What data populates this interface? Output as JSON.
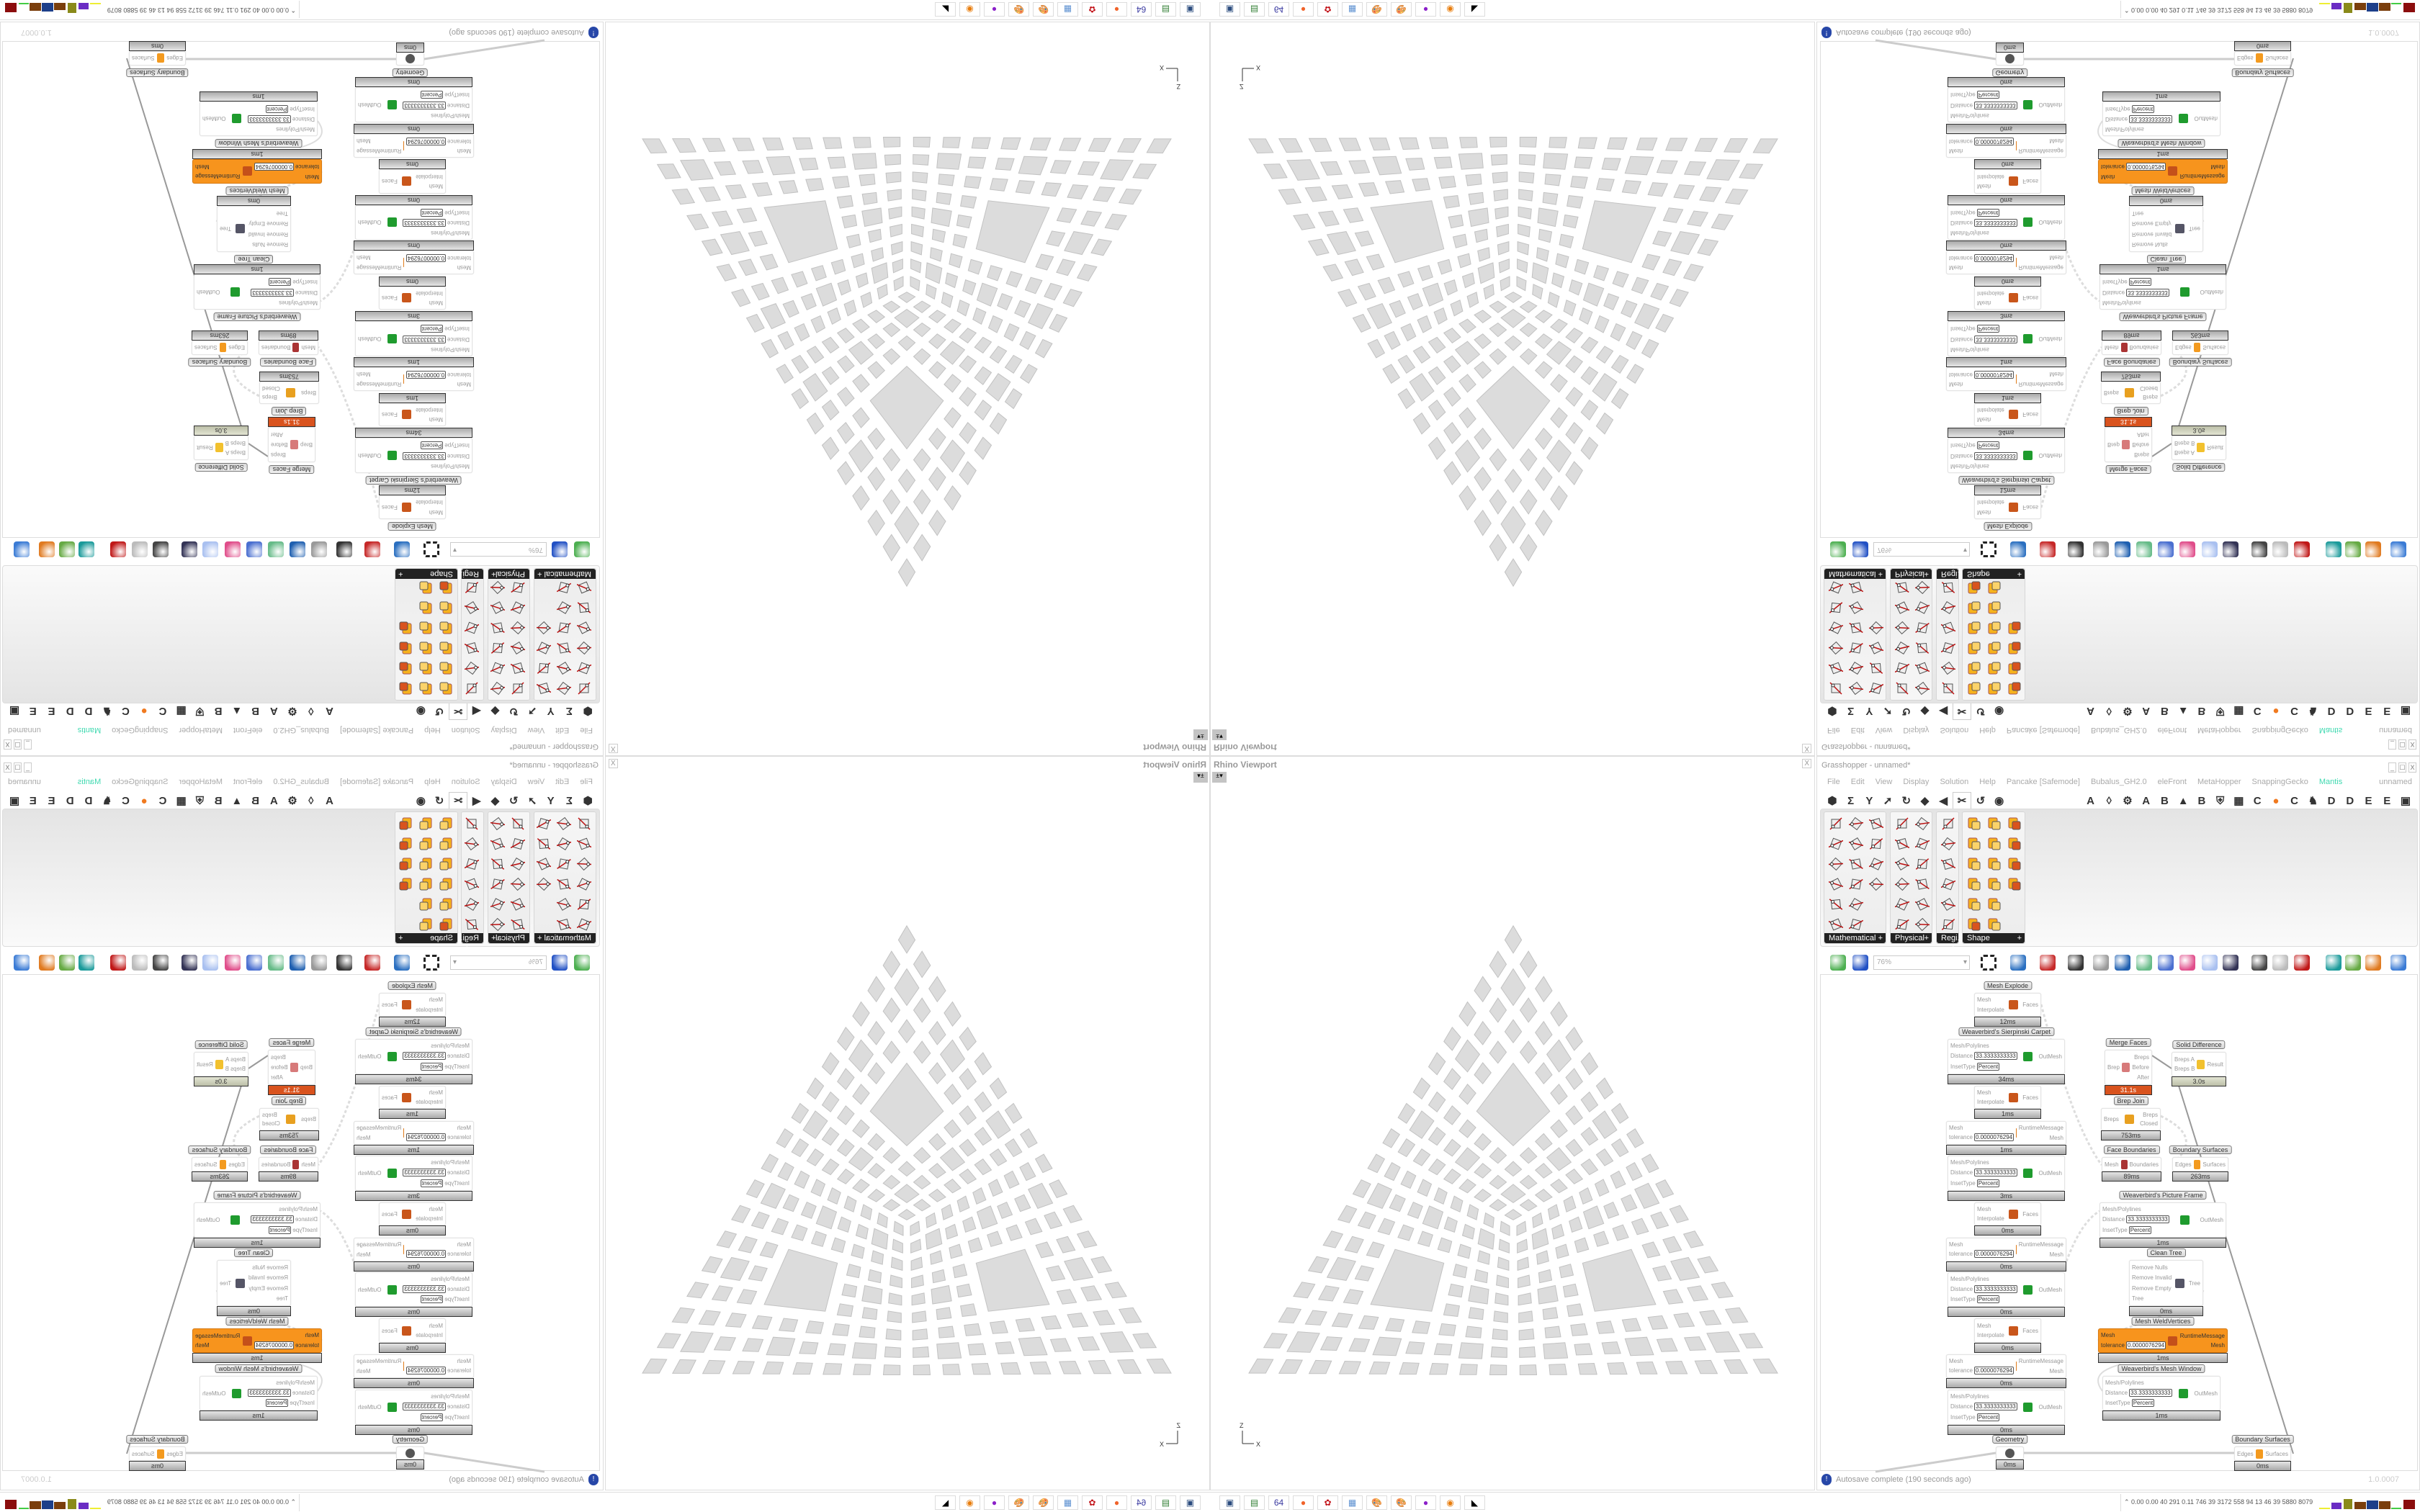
{
  "viewport": {
    "title": "Rhino Viewport",
    "close": "X",
    "dropdown": "±",
    "axis_z": "Z",
    "axis_x": "X"
  },
  "gh": {
    "title": "Grasshopper - unnamed*",
    "window_buttons": [
      "_",
      "☐",
      "X"
    ],
    "menu": [
      "File",
      "Edit",
      "View",
      "Display",
      "Solution",
      "Help",
      "Pancake [Safemode]",
      "Bubalus_GH2.0",
      "eleFront",
      "MetaHopper",
      "SnappingGecko",
      "Mantis"
    ],
    "active_menu_color": "#3fd9b0",
    "doc_name": "unnamed",
    "tabs": [
      {
        "glyph": "⬢",
        "name": "params-tab"
      },
      {
        "glyph": "Σ",
        "name": "maths-tab"
      },
      {
        "glyph": "Y",
        "name": "sets-tab"
      },
      {
        "glyph": "➚",
        "name": "vector-tab"
      },
      {
        "glyph": "↻",
        "name": "curve-tab"
      },
      {
        "glyph": "◆",
        "name": "surface-tab"
      },
      {
        "glyph": "◀",
        "name": "mesh-tab"
      },
      {
        "glyph": "✂",
        "name": "intersect-tab",
        "selected": true
      },
      {
        "glyph": "↺",
        "name": "transform-tab"
      },
      {
        "glyph": "◉",
        "name": "display-tab"
      },
      {
        "glyph": "A",
        "name": "tab-a1"
      },
      {
        "glyph": "◊",
        "name": "leaf-tab"
      },
      {
        "glyph": "⚙",
        "name": "gear-tab"
      },
      {
        "glyph": "A",
        "name": "tab-a2"
      },
      {
        "glyph": "B",
        "name": "tab-b1"
      },
      {
        "glyph": "▲",
        "name": "mountain-tab"
      },
      {
        "glyph": "B",
        "name": "tab-b2"
      },
      {
        "glyph": "⛨",
        "name": "shield-tab"
      },
      {
        "glyph": "▦",
        "name": "grid-tab"
      },
      {
        "glyph": "C",
        "name": "tab-c1"
      },
      {
        "glyph": "●",
        "name": "orange-circle-tab",
        "color": "#f07a20"
      },
      {
        "glyph": "C",
        "name": "tab-c2"
      },
      {
        "glyph": "♞",
        "name": "rooster-tab"
      },
      {
        "glyph": "D",
        "name": "tab-d1"
      },
      {
        "glyph": "D",
        "name": "tab-d2"
      },
      {
        "glyph": "E",
        "name": "tab-e1"
      },
      {
        "glyph": "E",
        "name": "tab-e2"
      },
      {
        "glyph": "▣",
        "name": "square-tab"
      }
    ],
    "panels": [
      {
        "label": "Mathematical",
        "icon_count": 16
      },
      {
        "label": "Physical",
        "icon_count": 12
      },
      {
        "label": "Regi...",
        "icon_count": 6
      },
      {
        "label": "Shape",
        "icon_count": 16
      }
    ],
    "zoom": "76%",
    "toolbar_icons": [
      "new-file-icon",
      "save-icon",
      "zoom-extents-icon",
      "eye-icon",
      "sketch-pen-icon",
      "capsule-icon",
      "at-icon",
      "gha-icon",
      "image-icon",
      "search-icon",
      "pink-box-icon",
      "bulb-icon",
      "wire-cross-icon",
      "ghost-icon",
      "donut-icon",
      "red-gem-icon",
      "teal-shape-icon",
      "green-shape-icon",
      "half-sphere-icon",
      "blue-sphere-icon"
    ],
    "nodes": [
      {
        "title": "Mesh Explode",
        "inputs": [
          {
            "name": "Mesh"
          },
          {
            "name": "Interpolate"
          }
        ],
        "outputs": [
          "Faces"
        ],
        "icon": "#c9561b",
        "time": "12ms"
      },
      {
        "title": "Weaverbird's Sierpinski Carpet",
        "inputs": [
          {
            "name": "Mesh/Polylines"
          },
          {
            "name": "Distance",
            "value": "33.3333333333"
          },
          {
            "name": "InsetType",
            "value": "Percent"
          }
        ],
        "outputs": [
          "OutMesh"
        ],
        "icon": "#1f9b2e",
        "time": "34ms"
      },
      {
        "title": "",
        "inputs": [
          {
            "name": "Mesh"
          },
          {
            "name": "Interpolate"
          }
        ],
        "outputs": [
          "Faces"
        ],
        "icon": "#c9561b",
        "time": "1ms"
      },
      {
        "title": "",
        "inputs": [
          {
            "name": "Mesh"
          },
          {
            "name": "tolerance",
            "value": "0.0000076294"
          }
        ],
        "outputs": [
          "RuntimeMessage",
          "Mesh"
        ],
        "icon": "#e07b1a",
        "time": "1ms"
      },
      {
        "title": "",
        "inputs": [
          {
            "name": "Mesh/Polylines"
          },
          {
            "name": "Distance",
            "value": "33.3333333333"
          },
          {
            "name": "InsetType",
            "value": "Percent"
          }
        ],
        "outputs": [
          "OutMesh"
        ],
        "icon": "#1f9b2e",
        "time": "3ms"
      },
      {
        "title": "",
        "inputs": [
          {
            "name": "Mesh"
          },
          {
            "name": "Interpolate"
          }
        ],
        "outputs": [
          "Faces"
        ],
        "icon": "#c9561b",
        "time": "0ms"
      },
      {
        "title": "",
        "inputs": [
          {
            "name": "Mesh"
          },
          {
            "name": "tolerance",
            "value": "0.0000076294"
          }
        ],
        "outputs": [
          "RuntimeMessage",
          "Mesh"
        ],
        "icon": "#e07b1a",
        "time": "0ms"
      },
      {
        "title": "",
        "inputs": [
          {
            "name": "Mesh/Polylines"
          },
          {
            "name": "Distance",
            "value": "33.3333333333"
          },
          {
            "name": "InsetType",
            "value": "Percent"
          }
        ],
        "outputs": [
          "OutMesh"
        ],
        "icon": "#1f9b2e",
        "time": "0ms"
      },
      {
        "title": "",
        "inputs": [
          {
            "name": "Mesh"
          },
          {
            "name": "Interpolate"
          }
        ],
        "outputs": [
          "Faces"
        ],
        "icon": "#c9561b",
        "time": "0ms"
      },
      {
        "title": "",
        "inputs": [
          {
            "name": "Mesh"
          },
          {
            "name": "tolerance",
            "value": "0.0000076294"
          }
        ],
        "outputs": [
          "RuntimeMessage",
          "Mesh"
        ],
        "icon": "#e07b1a",
        "time": "0ms"
      },
      {
        "title": "",
        "inputs": [
          {
            "name": "Mesh/Polylines"
          },
          {
            "name": "Distance",
            "value": "33.3333333333"
          },
          {
            "name": "InsetType",
            "value": "Percent"
          }
        ],
        "outputs": [
          "OutMesh"
        ],
        "icon": "#1f9b2e",
        "time": "0ms"
      },
      {
        "title": "Geometry",
        "inputs": [],
        "outputs": [],
        "icon": "#555555",
        "time": "0ms"
      },
      {
        "title": "Merge Faces",
        "inputs": [
          {
            "name": "Brep"
          }
        ],
        "outputs": [
          "Breps",
          "Before",
          "After"
        ],
        "icon": "#d77a7a",
        "time": "31.1s",
        "state": "slow"
      },
      {
        "title": "Solid Difference",
        "inputs": [
          {
            "name": "Breps A"
          },
          {
            "name": "Breps B"
          }
        ],
        "outputs": [
          "Result"
        ],
        "icon": "#f2c12e",
        "time": "3.0s",
        "state": "warn"
      },
      {
        "title": "Brep Join",
        "inputs": [
          {
            "name": "Breps"
          }
        ],
        "outputs": [
          "Breps",
          "Closed"
        ],
        "icon": "#e8a020",
        "time": "753ms"
      },
      {
        "title": "Face Boundaries",
        "inputs": [
          {
            "name": "Mesh"
          }
        ],
        "outputs": [
          "Boundaries"
        ],
        "icon": "#a33",
        "time": "89ms"
      },
      {
        "title": "Boundary Surfaces",
        "inputs": [
          {
            "name": "Edges"
          }
        ],
        "outputs": [
          "Surfaces"
        ],
        "icon": "#f39a1f",
        "time": "263ms"
      },
      {
        "title": "Weaverbird's Picture Frame",
        "inputs": [
          {
            "name": "Mesh/Polylines"
          },
          {
            "name": "Distance",
            "value": "33.3333333333"
          },
          {
            "name": "InsetType",
            "value": "Percent"
          }
        ],
        "outputs": [
          "OutMesh"
        ],
        "icon": "#1f9b2e",
        "time": "1ms"
      },
      {
        "title": "Clean Tree",
        "inputs": [
          {
            "name": "Remove Nulls"
          },
          {
            "name": "Remove Invalid"
          },
          {
            "name": "Remove Empty"
          },
          {
            "name": "Tree"
          }
        ],
        "outputs": [
          "Tree"
        ],
        "icon": "#556",
        "time": "0ms"
      },
      {
        "title": "Mesh WeldVertices",
        "inputs": [
          {
            "name": "Mesh"
          },
          {
            "name": "tolerance",
            "value": "0.0000076294"
          }
        ],
        "outputs": [
          "RuntimeMessage",
          "Mesh"
        ],
        "icon": "#c4501a",
        "time": "1ms",
        "state": "selected"
      },
      {
        "title": "Weaverbird's Mesh Window",
        "inputs": [
          {
            "name": "Mesh/Polylines"
          },
          {
            "name": "Distance",
            "value": "33.3333333333"
          },
          {
            "name": "InsetType",
            "value": "Percent"
          }
        ],
        "outputs": [
          "OutMesh"
        ],
        "icon": "#1f9b2e",
        "time": "1ms"
      },
      {
        "title": "Boundary Surfaces",
        "inputs": [
          {
            "name": "Edges"
          }
        ],
        "outputs": [
          "Surfaces"
        ],
        "icon": "#f39a1f",
        "time": "0ms"
      }
    ],
    "status": "Autosave complete (190 seconds ago)",
    "version": "1.0.0007"
  },
  "taskbar": {
    "apps": [
      {
        "name": "remote-desktop-icon",
        "color": "#2b4c7e",
        "glyph": "▣"
      },
      {
        "name": "terminal-icon",
        "color": "#2f7d32",
        "glyph": "▤"
      },
      {
        "name": "floppy-64-icon",
        "color": "#3a3aa0",
        "glyph": "64"
      },
      {
        "name": "firefox-icon",
        "color": "#f0632a",
        "glyph": "●"
      },
      {
        "name": "settings-icon",
        "color": "#c3161c",
        "glyph": "✿"
      },
      {
        "name": "calculator-icon",
        "color": "#5b8fd0",
        "glyph": "▦"
      },
      {
        "name": "paint-icon",
        "color": "#6aa0d8",
        "glyph": "🎨"
      },
      {
        "name": "paint-2-icon",
        "color": "#6aa0d8",
        "glyph": "🎨"
      },
      {
        "name": "chat-icon",
        "color": "#8b1fc9",
        "glyph": "●"
      },
      {
        "name": "blender-icon",
        "color": "#e87d0d",
        "glyph": "◉"
      },
      {
        "name": "rhino-icon",
        "color": "#000000",
        "glyph": "◣"
      }
    ],
    "stats": "0.00 0.00  40  291  0.11  746  39  3172  558  94  13  46  39  5880 8079"
  }
}
